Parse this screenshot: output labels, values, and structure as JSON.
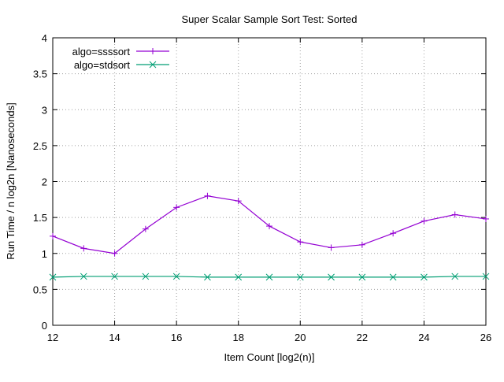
{
  "chart_data": {
    "type": "line",
    "title": "Super Scalar Sample Sort Test: Sorted",
    "xlabel": "Item Count [log2(n)]",
    "ylabel": "Run Time / n log2n [Nanoseconds]",
    "xlim": [
      12,
      26
    ],
    "ylim": [
      0,
      4
    ],
    "x_ticks": [
      12,
      14,
      16,
      18,
      20,
      22,
      24,
      26
    ],
    "y_ticks": [
      "0",
      "0.5",
      "1",
      "1.5",
      "2",
      "2.5",
      "3",
      "3.5",
      "4"
    ],
    "grid": true,
    "legend_position": "top-left",
    "x": [
      12,
      13,
      14,
      15,
      16,
      17,
      18,
      19,
      20,
      21,
      22,
      23,
      24,
      25,
      26
    ],
    "series": [
      {
        "name": "algo=ssssort",
        "color": "#9400d3",
        "marker": "plus",
        "values": [
          1.24,
          1.07,
          1.0,
          1.34,
          1.64,
          1.8,
          1.73,
          1.38,
          1.16,
          1.08,
          1.12,
          1.28,
          1.45,
          1.54,
          1.48
        ]
      },
      {
        "name": "algo=stdsort",
        "color": "#009e73",
        "marker": "cross",
        "values": [
          0.67,
          0.68,
          0.68,
          0.68,
          0.68,
          0.67,
          0.67,
          0.67,
          0.67,
          0.67,
          0.67,
          0.67,
          0.67,
          0.68,
          0.68
        ]
      }
    ]
  }
}
